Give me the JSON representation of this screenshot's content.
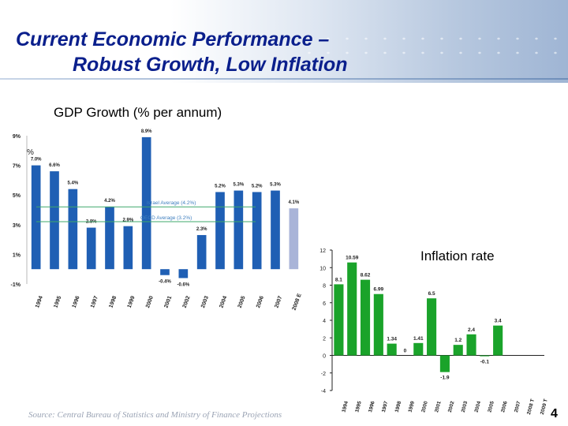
{
  "slide": {
    "title_line1": "Current Economic Performance –",
    "title_line2": "Robust Growth, Low Inflation",
    "source": "Source: Central Bureau of Statistics and Ministry of Finance Projections",
    "page_number": "4",
    "accent_color": "#0a1f8c"
  },
  "chart_data": [
    {
      "type": "bar",
      "title": "GDP Growth (% per annum)",
      "ylabel": "%",
      "ylim": [
        -1,
        9
      ],
      "yticks": [
        "-1%",
        "1%",
        "3%",
        "5%",
        "7%",
        "9%"
      ],
      "categories": [
        "1994",
        "1995",
        "1996",
        "1997",
        "1998",
        "1999",
        "2000",
        "2001",
        "2002",
        "2003",
        "2004",
        "2005",
        "2006",
        "2007",
        "2008 E"
      ],
      "values": [
        7.0,
        6.6,
        5.4,
        2.8,
        4.2,
        2.9,
        8.9,
        -0.4,
        -0.6,
        2.3,
        5.2,
        5.3,
        5.2,
        5.3,
        4.1
      ],
      "value_labels": [
        "7.0%",
        "6.6%",
        "5.4%",
        "2.8%",
        "4.2%",
        "2.9%",
        "8.9%",
        "-0.4%",
        "-0.6%",
        "2.3%",
        "5.2%",
        "5.3%",
        "5.2%",
        "5.3%",
        "4.1%"
      ],
      "reference_lines": [
        {
          "label": "Israel Average (4.2%)",
          "value": 4.2,
          "color": "#3fa86b"
        },
        {
          "label": "OECD Average (3.2%)",
          "value": 3.2,
          "color": "#3fa86b"
        }
      ],
      "colors": {
        "bar": "#1f5fb4",
        "estimate_bar": "#a9b4d8"
      }
    },
    {
      "type": "bar",
      "title": "Inflation rate",
      "ylim": [
        -4,
        12
      ],
      "yticks": [
        "-4",
        "-2",
        "0",
        "2",
        "4",
        "6",
        "8",
        "10",
        "12"
      ],
      "categories": [
        "1994",
        "1995",
        "1996",
        "1997",
        "1998",
        "1999",
        "2000",
        "2001",
        "2002",
        "2003",
        "2004",
        "2005",
        "2006",
        "2007",
        "2008 T",
        "2009 T"
      ],
      "values": [
        8.1,
        10.59,
        8.62,
        6.99,
        1.34,
        0,
        1.41,
        6.5,
        -1.9,
        1.2,
        2.4,
        -0.1,
        3.4,
        null,
        null,
        null
      ],
      "value_labels": [
        "8.1",
        "10.59",
        "8.62",
        "6.99",
        "1.34",
        "0",
        "1.41",
        "6.5",
        "-1.9",
        "1.2",
        "2.4",
        "-0.1",
        "3.4",
        "",
        "",
        ""
      ],
      "colors": {
        "bar": "#1aa32a"
      }
    }
  ]
}
